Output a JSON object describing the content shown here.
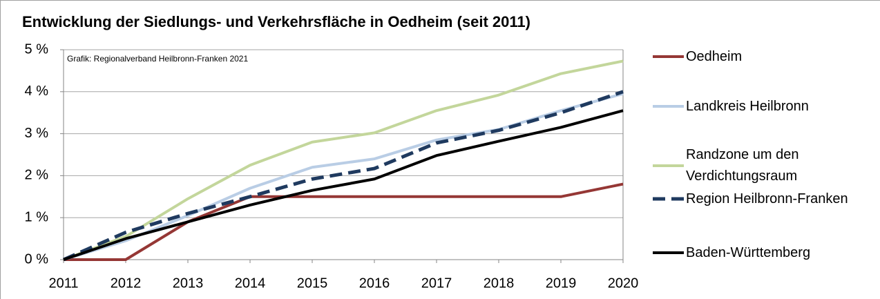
{
  "chart_data": {
    "type": "line",
    "title": "Entwicklung der Siedlungs- und Verkehrsfläche in Oedheim (seit 2011)",
    "annotation": "Grafik: Regionalverband Heilbronn-Franken 2021",
    "x": [
      2011,
      2012,
      2013,
      2014,
      2015,
      2016,
      2017,
      2018,
      2019,
      2020
    ],
    "xlim": [
      2011,
      2020
    ],
    "xticks": [
      2011,
      2012,
      2013,
      2014,
      2015,
      2016,
      2017,
      2018,
      2019,
      2020
    ],
    "ylim": [
      0,
      5
    ],
    "yticks": [
      {
        "value": 0,
        "label": "0 %"
      },
      {
        "value": 1,
        "label": "1 %"
      },
      {
        "value": 2,
        "label": "2 %"
      },
      {
        "value": 3,
        "label": "3 %"
      },
      {
        "value": 4,
        "label": "4 %"
      },
      {
        "value": 5,
        "label": "5 %"
      }
    ],
    "grid": true,
    "legend": "right",
    "series": [
      {
        "name": "Oedheim",
        "color": "#953735",
        "values": [
          0,
          0,
          0.9,
          1.5,
          1.5,
          1.5,
          1.5,
          1.5,
          1.5,
          1.8
        ]
      },
      {
        "name": "Landkreis Heilbronn",
        "color": "#b9cde5",
        "values": [
          0,
          0.45,
          1.05,
          1.7,
          2.2,
          2.4,
          2.85,
          3.1,
          3.55,
          3.95
        ]
      },
      {
        "name": "Randzone um den Verdichtungsraum",
        "color": "#c3d69b",
        "values": [
          0,
          0.55,
          1.45,
          2.25,
          2.8,
          3.02,
          3.55,
          3.92,
          4.43,
          4.73
        ]
      },
      {
        "name": "Region Heilbronn-Franken",
        "color": "#1f3a5f",
        "dashed": true,
        "values": [
          0,
          0.65,
          1.1,
          1.5,
          1.92,
          2.17,
          2.78,
          3.08,
          3.5,
          4.0
        ]
      },
      {
        "name": "Baden-Württemberg",
        "color": "#000000",
        "values": [
          0,
          0.5,
          0.9,
          1.3,
          1.65,
          1.92,
          2.48,
          2.82,
          3.15,
          3.55
        ]
      }
    ]
  }
}
